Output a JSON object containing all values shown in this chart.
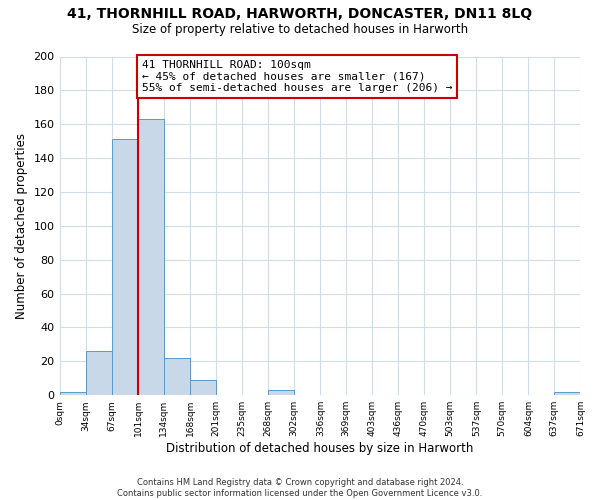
{
  "title": "41, THORNHILL ROAD, HARWORTH, DONCASTER, DN11 8LQ",
  "subtitle": "Size of property relative to detached houses in Harworth",
  "xlabel": "Distribution of detached houses by size in Harworth",
  "ylabel": "Number of detached properties",
  "bin_edges": [
    0,
    34,
    67,
    101,
    134,
    168,
    201,
    235,
    268,
    302,
    336,
    369,
    403,
    436,
    470,
    503,
    537,
    570,
    604,
    637,
    671
  ],
  "bin_counts": [
    2,
    26,
    151,
    163,
    22,
    9,
    0,
    0,
    3,
    0,
    0,
    0,
    0,
    0,
    0,
    0,
    0,
    0,
    0,
    2
  ],
  "bar_color": "#c8d8e8",
  "bar_edge_color": "#5a9ac8",
  "property_line_x": 101,
  "annotation_title": "41 THORNHILL ROAD: 100sqm",
  "annotation_line1": "← 45% of detached houses are smaller (167)",
  "annotation_line2": "55% of semi-detached houses are larger (206) →",
  "annotation_box_color": "#ffffff",
  "annotation_box_edge": "#cc0000",
  "vline_color": "#cc0000",
  "ylim": [
    0,
    200
  ],
  "yticks": [
    0,
    20,
    40,
    60,
    80,
    100,
    120,
    140,
    160,
    180,
    200
  ],
  "tick_labels": [
    "0sqm",
    "34sqm",
    "67sqm",
    "101sqm",
    "134sqm",
    "168sqm",
    "201sqm",
    "235sqm",
    "268sqm",
    "302sqm",
    "336sqm",
    "369sqm",
    "403sqm",
    "436sqm",
    "470sqm",
    "503sqm",
    "537sqm",
    "570sqm",
    "604sqm",
    "637sqm",
    "671sqm"
  ],
  "footer_line1": "Contains HM Land Registry data © Crown copyright and database right 2024.",
  "footer_line2": "Contains public sector information licensed under the Open Government Licence v3.0.",
  "bg_color": "#ffffff",
  "grid_color": "#d0dce8",
  "figwidth": 6.0,
  "figheight": 5.0,
  "dpi": 100
}
